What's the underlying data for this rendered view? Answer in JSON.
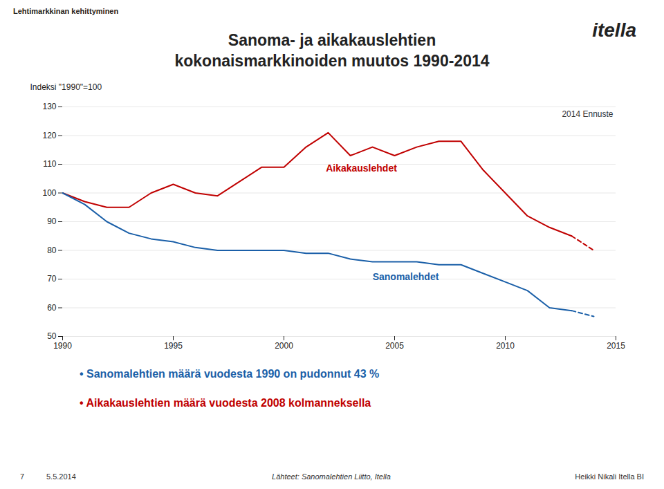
{
  "chart_data": {
    "type": "line",
    "title": "Sanoma- ja aikakauslehtien\nkokonaismarkkinoiden muutos 1990-2014",
    "top_label": "Lehtimarkkinan kehittyminen",
    "logo": "itella",
    "ylabel": "Indeksi \"1990\"=100",
    "annotations": [
      "2014 Ennuste"
    ],
    "bullets": [
      {
        "text": "• Sanomalehtien määrä vuodesta 1990 on pudonnut 43 %",
        "color": "#1a5fa8"
      },
      {
        "text": "• Aikakauslehtien määrä vuodesta 2008 kolmanneksella",
        "color": "#c00000"
      }
    ],
    "footer": [
      "7",
      "5.5.2014",
      "Lähteet: Sanomalehtien Liitto, Itella",
      "Heikki Nikali Itella BI"
    ],
    "x": [
      1990,
      1991,
      1992,
      1993,
      1994,
      1995,
      1996,
      1997,
      1998,
      1999,
      2000,
      2001,
      2002,
      2003,
      2004,
      2005,
      2006,
      2007,
      2008,
      2009,
      2010,
      2011,
      2012,
      2013,
      2014
    ],
    "series": [
      {
        "name": "Aikakauslehdet",
        "color": "#c00000",
        "line_style": "solid",
        "values": [
          100,
          97,
          95,
          95,
          100,
          103,
          100,
          99,
          104,
          109,
          109,
          116,
          121,
          113,
          116,
          113,
          116,
          118,
          118,
          108,
          100,
          92,
          88,
          85,
          null
        ]
      },
      {
        "name": "Aikakauslehdet",
        "color": "#c00000",
        "line_style": "dashed",
        "values": [
          null,
          null,
          null,
          null,
          null,
          null,
          null,
          null,
          null,
          null,
          null,
          null,
          null,
          null,
          null,
          null,
          null,
          null,
          null,
          null,
          null,
          null,
          null,
          85,
          80
        ]
      },
      {
        "name": "Sanomalehdet",
        "color": "#1a5fa8",
        "line_style": "solid",
        "values": [
          100,
          96,
          90,
          86,
          84,
          83,
          81,
          80,
          80,
          80,
          80,
          79,
          79,
          77,
          76,
          76,
          76,
          75,
          75,
          72,
          69,
          66,
          60,
          59,
          null
        ]
      },
      {
        "name": "Sanomalehdet",
        "color": "#1a5fa8",
        "line_style": "dashed",
        "values": [
          null,
          null,
          null,
          null,
          null,
          null,
          null,
          null,
          null,
          null,
          null,
          null,
          null,
          null,
          null,
          null,
          null,
          null,
          null,
          null,
          null,
          null,
          null,
          59,
          57
        ]
      }
    ],
    "xlim": [
      1990,
      2015
    ],
    "ylim": [
      50,
      130
    ],
    "xticks": [
      1990,
      1995,
      2000,
      2005,
      2010,
      2015
    ],
    "yticks": [
      50,
      60,
      70,
      80,
      90,
      100,
      110,
      120,
      130
    ],
    "grid": "y"
  }
}
